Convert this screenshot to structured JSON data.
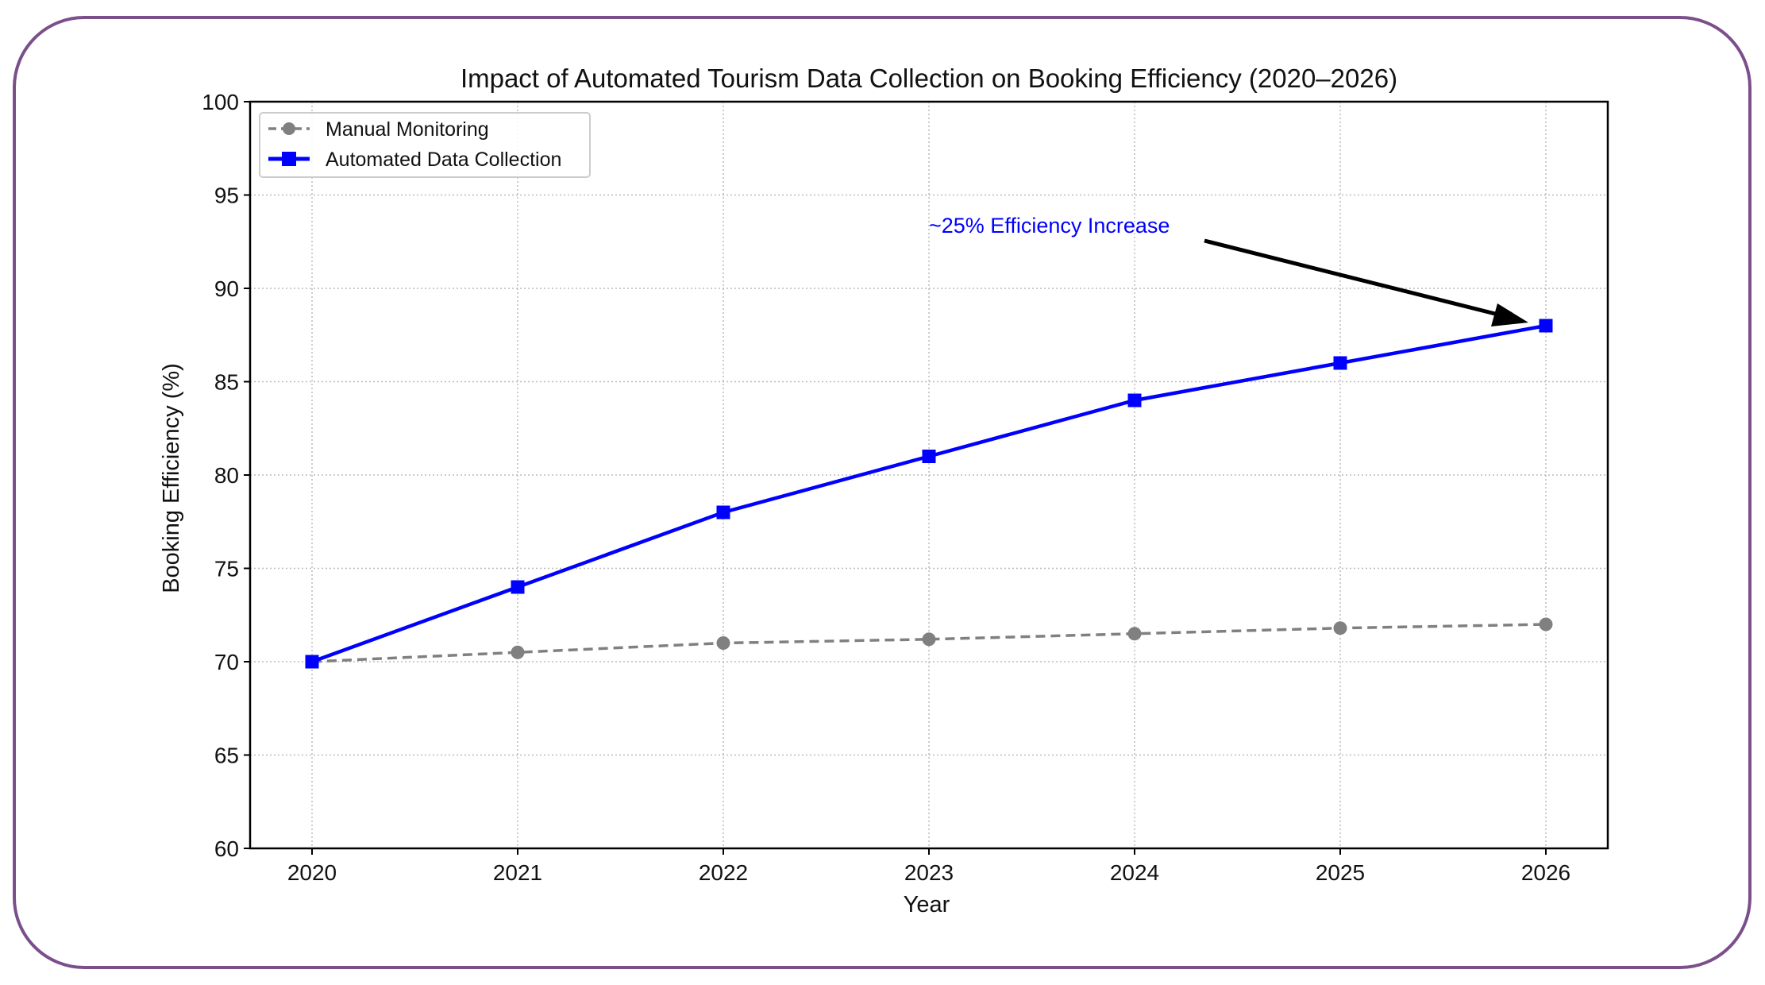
{
  "chart_data": {
    "type": "line",
    "title": "Impact of Automated Tourism Data Collection on Booking Efficiency (2020–2026)",
    "xlabel": "Year",
    "ylabel": "Booking Efficiency (%)",
    "x": [
      2020,
      2021,
      2022,
      2023,
      2024,
      2025,
      2026
    ],
    "x_tick_labels": [
      "2020",
      "2021",
      "2022",
      "2023",
      "2024",
      "2025",
      "2026"
    ],
    "ylim": [
      60,
      100
    ],
    "y_ticks": [
      60,
      65,
      70,
      75,
      80,
      85,
      90,
      95,
      100
    ],
    "grid": true,
    "legend_position": "top-left",
    "series": [
      {
        "name": "Manual Monitoring",
        "values": [
          70,
          70.5,
          71,
          71.2,
          71.5,
          71.8,
          72
        ],
        "color": "#808080",
        "line_style": "dashed",
        "marker": "circle"
      },
      {
        "name": "Automated Data Collection",
        "values": [
          70,
          74,
          78,
          81,
          84,
          86,
          88
        ],
        "color": "#0000ff",
        "line_style": "solid",
        "marker": "square"
      }
    ],
    "annotation": {
      "text": "~25% Efficiency Increase",
      "color": "#0000ff",
      "points_to": {
        "x": 2026,
        "y": 88
      }
    }
  },
  "frame_color": "#7b4f8a"
}
